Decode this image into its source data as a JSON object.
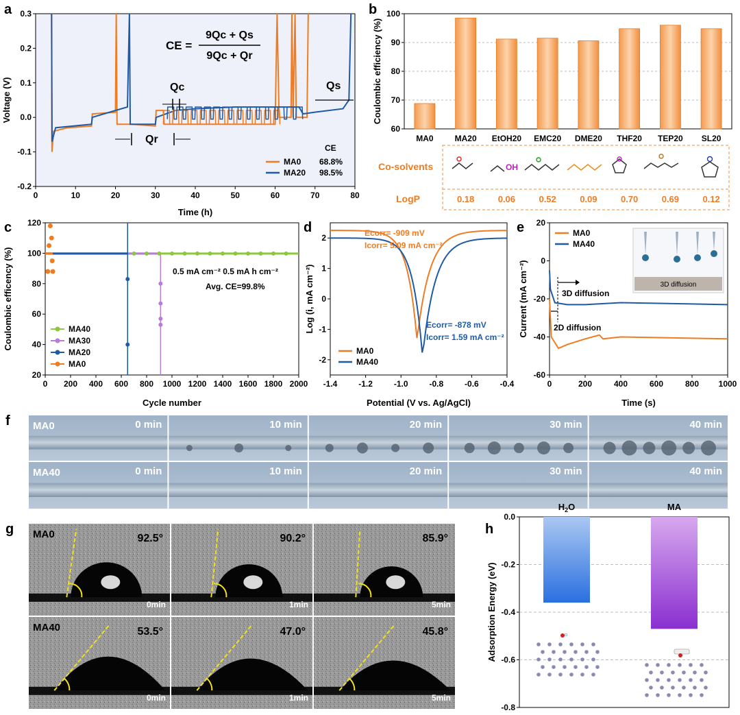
{
  "panels": {
    "a": {
      "letter": "a"
    },
    "b": {
      "letter": "b"
    },
    "c": {
      "letter": "c"
    },
    "d": {
      "letter": "d"
    },
    "e": {
      "letter": "e"
    },
    "f": {
      "letter": "f"
    },
    "g": {
      "letter": "g"
    },
    "h": {
      "letter": "h"
    }
  },
  "colors": {
    "orange": "#f07c22",
    "blue": "#1f5aa6",
    "green": "#8dc63f",
    "purple": "#b67cd8",
    "barOrange": "#f7a25a",
    "panelBg": "#eef0fa"
  },
  "chart_data": [
    {
      "id": "a",
      "type": "line",
      "xlabel": "Time (h)",
      "ylabel": "Voltage (V)",
      "xlim": [
        0,
        80
      ],
      "ylim": [
        -0.2,
        0.3
      ],
      "xticks": [
        "0",
        "10",
        "20",
        "30",
        "40",
        "50",
        "60",
        "70",
        "80"
      ],
      "yticks": [
        "-0.2",
        "-0.1",
        "0.0",
        "0.1",
        "0.2",
        "0.3"
      ],
      "formula": {
        "lhs": "CE =",
        "num": "9Qc + Qs",
        "den": "9Qc + Qr"
      },
      "annotations": {
        "qc": "Qc",
        "qr": "Qr",
        "qs": "Qs"
      },
      "legend": {
        "header": "CE",
        "items": [
          {
            "name": "MA0",
            "value": "68.8%"
          },
          {
            "name": "MA20",
            "value": "98.5%"
          }
        ]
      },
      "series": [
        {
          "name": "MA0",
          "color": "#f07c22",
          "points": [
            [
              4,
              0.3
            ],
            [
              4.1,
              -0.1
            ],
            [
              4.5,
              -0.04
            ],
            [
              8,
              -0.03
            ],
            [
              14,
              -0.025
            ],
            [
              14.2,
              0.01
            ],
            [
              20,
              0.015
            ],
            [
              20.2,
              0.3
            ],
            [
              20.4,
              -0.02
            ],
            [
              24,
              -0.02
            ],
            [
              30,
              -0.025
            ],
            [
              30.2,
              0.02
            ],
            [
              32,
              0.02
            ],
            [
              32.2,
              -0.02
            ],
            [
              60,
              -0.02
            ],
            [
              60.5,
              0.3
            ],
            [
              61,
              0.0
            ],
            [
              64,
              0.0
            ],
            [
              64.2,
              0.3
            ],
            [
              64.5,
              0.0
            ],
            [
              65,
              0.3
            ],
            [
              65.3,
              0.0
            ],
            [
              68,
              0.0
            ],
            [
              68.3,
              0.3
            ]
          ]
        },
        {
          "name": "MA20",
          "color": "#1f5aa6",
          "points": [
            [
              4,
              0.3
            ],
            [
              4.1,
              -0.07
            ],
            [
              5,
              -0.03
            ],
            [
              14,
              -0.02
            ],
            [
              14.2,
              0.0
            ],
            [
              20,
              0.02
            ],
            [
              23,
              0.03
            ],
            [
              23.5,
              0.3
            ],
            [
              23.7,
              -0.02
            ],
            [
              30,
              -0.02
            ],
            [
              30.2,
              0.0
            ],
            [
              35,
              0.02
            ],
            [
              40,
              0.025
            ],
            [
              50,
              0.03
            ],
            [
              60,
              0.03
            ],
            [
              66,
              0.03
            ],
            [
              67,
              0.01
            ],
            [
              70,
              0.015
            ],
            [
              77,
              0.025
            ],
            [
              78.5,
              0.05
            ],
            [
              79,
              0.3
            ]
          ]
        }
      ]
    },
    {
      "id": "b",
      "type": "bar",
      "ylabel": "Coulombic efficiency (%)",
      "ylim": [
        60,
        100
      ],
      "yticks": [
        "60",
        "70",
        "80",
        "90",
        "100"
      ],
      "categories": [
        "MA0",
        "MA20",
        "EtOH20",
        "EMC20",
        "DME20",
        "THF20",
        "TEP20",
        "SL20"
      ],
      "values": [
        68.8,
        98.5,
        91.2,
        91.5,
        90.6,
        94.8,
        96.0,
        94.8
      ],
      "table": {
        "row1": "Co-solvents",
        "row2": "LogP",
        "logp": [
          "0.18",
          "0.06",
          "0.52",
          "0.09",
          "0.70",
          "0.69",
          "0.12"
        ]
      }
    },
    {
      "id": "c",
      "type": "scatter",
      "xlabel": "Cycle number",
      "ylabel": "Coulombic efficency (%)",
      "xlim": [
        0,
        2000
      ],
      "ylim": [
        20,
        120
      ],
      "xticks": [
        "0",
        "200",
        "400",
        "600",
        "800",
        "1000",
        "1200",
        "1400",
        "1600",
        "1800",
        "2000"
      ],
      "yticks": [
        "20",
        "40",
        "60",
        "80",
        "100",
        "120"
      ],
      "note1": "0.5 mA cm⁻²   0.5 mA h cm⁻²",
      "note2": "Avg. CE=99.8%",
      "series": [
        {
          "name": "MA40",
          "color": "#8dc63f",
          "end": 2000
        },
        {
          "name": "MA30",
          "color": "#b67cd8",
          "end": 910
        },
        {
          "name": "MA20",
          "color": "#1f5aa6",
          "end": 650
        },
        {
          "name": "MA0",
          "color": "#f07c22",
          "end": 60
        }
      ]
    },
    {
      "id": "d",
      "type": "line",
      "xlabel": "Potential (V vs. Ag/AgCl)",
      "ylabel": "Log (i, mA cm⁻²)",
      "xlim": [
        -1.4,
        -0.4
      ],
      "ylim": [
        -2.5,
        2.5
      ],
      "xticks": [
        "-1.4",
        "-1.2",
        "-1.0",
        "-0.8",
        "-0.6",
        "-0.4"
      ],
      "yticks": [
        "-2",
        "-1",
        "0",
        "1",
        "2"
      ],
      "ann_orange": {
        "e": "Ecorr= -909 mV",
        "i": "Icorr= 5.09 mA cm⁻²"
      },
      "ann_blue": {
        "e": "Ecorr= -878 mV",
        "i": "Icorr= 1.59 mA cm⁻²"
      },
      "series": [
        {
          "name": "MA0",
          "color": "#f07c22",
          "ecorr": -0.909,
          "min": -1.35
        },
        {
          "name": "MA40",
          "color": "#1f5aa6",
          "ecorr": -0.878,
          "min": -1.9
        }
      ]
    },
    {
      "id": "e",
      "type": "line",
      "xlabel": "Time (s)",
      "ylabel": "Current (mA cm⁻²)",
      "xlim": [
        0,
        1000
      ],
      "ylim": [
        -60,
        20
      ],
      "xticks": [
        "0",
        "200",
        "400",
        "600",
        "800",
        "1000"
      ],
      "yticks": [
        "-60",
        "-40",
        "-20",
        "0",
        "20"
      ],
      "ann3d": "3D diffusion",
      "ann2d": "2D diffusion",
      "inset": "3D diffusion",
      "series": [
        {
          "name": "MA0",
          "color": "#f07c22",
          "points": [
            [
              0,
              -20
            ],
            [
              10,
              -40
            ],
            [
              50,
              -46
            ],
            [
              100,
              -44
            ],
            [
              200,
              -41
            ],
            [
              280,
              -39
            ],
            [
              300,
              -41
            ],
            [
              400,
              -40
            ],
            [
              1000,
              -41
            ]
          ]
        },
        {
          "name": "MA40",
          "color": "#1f5aa6",
          "points": [
            [
              0,
              -5
            ],
            [
              5,
              -15
            ],
            [
              30,
              -22
            ],
            [
              100,
              -23
            ],
            [
              200,
              -23
            ],
            [
              400,
              -22
            ],
            [
              1000,
              -23
            ]
          ]
        }
      ]
    },
    {
      "id": "h",
      "type": "bar",
      "ylabel": "Adsorption Energy (eV)",
      "ylim": [
        -0.8,
        0.0
      ],
      "yticks": [
        "0.0",
        "-0.2",
        "-0.4",
        "-0.6",
        "-0.8"
      ],
      "categories": [
        "H2O",
        "MA"
      ],
      "values": [
        -0.36,
        -0.47
      ]
    }
  ],
  "panel_f": {
    "rows": [
      "MA0",
      "MA40"
    ],
    "times": [
      "0 min",
      "10 min",
      "20 min",
      "30 min",
      "40 min"
    ]
  },
  "panel_g": {
    "rows": [
      {
        "name": "MA0",
        "angles": [
          "92.5°",
          "90.2°",
          "85.9°"
        ]
      },
      {
        "name": "MA40",
        "angles": [
          "53.5°",
          "47.0°",
          "45.8°"
        ]
      }
    ],
    "times": [
      "0min",
      "1min",
      "5min"
    ]
  }
}
